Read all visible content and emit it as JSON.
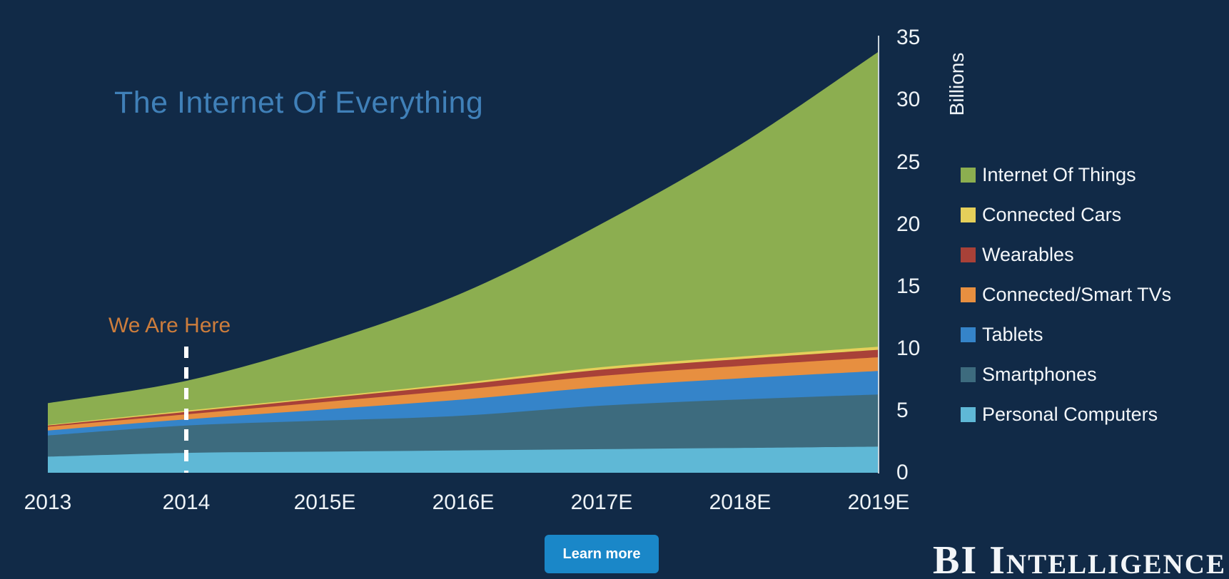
{
  "title": {
    "text": "The Internet Of Everything",
    "color": "#4080b8"
  },
  "annotation": {
    "text": "We Are Here",
    "at_category": "2014",
    "color": "#cd7d3c"
  },
  "footer": {
    "learn_more_label": "Learn more",
    "brand_text": "BI Intelligence"
  },
  "colors": {
    "background": "#112a47",
    "axis_line": "#c9d3da",
    "tick_text": "#eef3f7",
    "dashed_marker": "#ffffff",
    "button": "#1a87c8"
  },
  "chart_data": {
    "type": "area",
    "stacked": true,
    "title": "The Internet Of Everything",
    "ylabel": "Billions",
    "xlabel": "",
    "ylim": [
      0,
      35
    ],
    "y_ticks": [
      0,
      5,
      10,
      15,
      20,
      25,
      30,
      35
    ],
    "grid": false,
    "axis_side": "right",
    "legend_position": "right",
    "categories": [
      "2013",
      "2014",
      "2015E",
      "2016E",
      "2017E",
      "2018E",
      "2019E"
    ],
    "series": [
      {
        "name": "Personal Computers",
        "color": "#5fb8d6",
        "values": [
          1.3,
          1.6,
          1.7,
          1.8,
          1.9,
          2.0,
          2.1
        ]
      },
      {
        "name": "Smartphones",
        "color": "#3d6b7e",
        "values": [
          1.7,
          2.2,
          2.5,
          2.8,
          3.5,
          3.9,
          4.2
        ]
      },
      {
        "name": "Tablets",
        "color": "#3584c9",
        "values": [
          0.4,
          0.5,
          0.9,
          1.3,
          1.5,
          1.7,
          1.9
        ]
      },
      {
        "name": "Connected/Smart TVs",
        "color": "#e78f40",
        "values": [
          0.3,
          0.4,
          0.6,
          0.8,
          0.9,
          1.0,
          1.1
        ]
      },
      {
        "name": "Wearables",
        "color": "#a84138",
        "values": [
          0.1,
          0.2,
          0.3,
          0.4,
          0.5,
          0.55,
          0.6
        ]
      },
      {
        "name": "Connected Cars",
        "color": "#e5cf5a",
        "values": [
          0.05,
          0.1,
          0.1,
          0.15,
          0.2,
          0.2,
          0.25
        ]
      },
      {
        "name": "Internet Of Things",
        "color": "#8cae50",
        "values": [
          1.75,
          2.4,
          4.4,
          7.25,
          11.55,
          17.05,
          23.75
        ]
      }
    ],
    "stack_totals": [
      5.6,
      7.4,
      10.5,
      14.5,
      20.05,
      26.4,
      33.9
    ]
  }
}
